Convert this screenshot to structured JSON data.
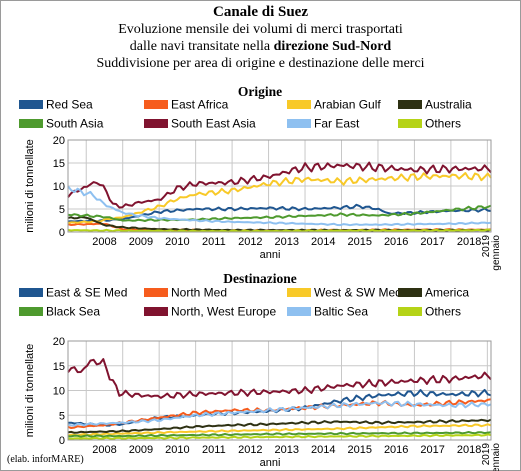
{
  "header": {
    "title": "Canale di Suez",
    "line1": "Evoluzione mensile dei volumi di merci trasportati",
    "line2_prefix": "dalle navi transitate nella ",
    "line2_bold": "direzione Sud-Nord",
    "line3": "Suddivisione per area di origine e destinazione delle merci"
  },
  "credit": "(elab. inforMARE)",
  "chart_data": [
    {
      "type": "line",
      "title": "Origine",
      "xlabel": "anni",
      "ylabel": "milioni di tonnellate",
      "x_ticks": [
        "2008",
        "2009",
        "2010",
        "2011",
        "2012",
        "2013",
        "2014",
        "2015",
        "2016",
        "2017",
        "2018",
        "2019 gennaio"
      ],
      "x_range": [
        2007.5,
        2019.1
      ],
      "ylim": [
        0,
        20
      ],
      "y_ticks": [
        0,
        5,
        10,
        15,
        20
      ],
      "grid": true,
      "legend_position": "top",
      "series": [
        {
          "name": "Red Sea",
          "color": "#1f5690",
          "keyframes": [
            [
              2007.5,
              2.3
            ],
            [
              2008.5,
              2.5
            ],
            [
              2009.0,
              2.8
            ],
            [
              2009.5,
              3.6
            ],
            [
              2010.0,
              4.4
            ],
            [
              2011.0,
              5.0
            ],
            [
              2012.0,
              5.0
            ],
            [
              2013.0,
              5.2
            ],
            [
              2014.0,
              5.0
            ],
            [
              2015.0,
              5.3
            ],
            [
              2015.5,
              5.6
            ],
            [
              2016.0,
              5.0
            ],
            [
              2016.3,
              4.0
            ],
            [
              2017.0,
              4.2
            ],
            [
              2018.0,
              4.6
            ],
            [
              2019.0,
              4.8
            ]
          ]
        },
        {
          "name": "East Africa",
          "color": "#f65c1d",
          "keyframes": [
            [
              2007.5,
              1.6
            ],
            [
              2008.5,
              1.8
            ],
            [
              2009.0,
              0.6
            ],
            [
              2011.0,
              0.4
            ],
            [
              2013.0,
              0.3
            ],
            [
              2015.0,
              0.4
            ],
            [
              2017.0,
              0.5
            ],
            [
              2019.0,
              0.5
            ]
          ]
        },
        {
          "name": "Arabian Gulf",
          "color": "#f8c928",
          "keyframes": [
            [
              2007.5,
              2.0
            ],
            [
              2008.3,
              2.3
            ],
            [
              2008.6,
              2.8
            ],
            [
              2009.0,
              3.2
            ],
            [
              2010.0,
              5.5
            ],
            [
              2010.5,
              7.2
            ],
            [
              2011.0,
              8.2
            ],
            [
              2012.0,
              9.0
            ],
            [
              2013.0,
              10.5
            ],
            [
              2014.0,
              11.5
            ],
            [
              2015.0,
              11.0
            ],
            [
              2016.0,
              11.5
            ],
            [
              2017.0,
              12.0
            ],
            [
              2018.0,
              12.2
            ],
            [
              2019.0,
              12.0
            ]
          ]
        },
        {
          "name": "Australia",
          "color": "#2e3113",
          "keyframes": [
            [
              2007.5,
              3.0
            ],
            [
              2008.0,
              3.2
            ],
            [
              2008.5,
              1.5
            ],
            [
              2009.0,
              1.0
            ],
            [
              2010.0,
              0.6
            ],
            [
              2012.0,
              0.4
            ],
            [
              2014.0,
              0.4
            ],
            [
              2016.0,
              0.4
            ],
            [
              2019.0,
              0.4
            ]
          ]
        },
        {
          "name": "South Asia",
          "color": "#4e9a2e",
          "keyframes": [
            [
              2007.5,
              3.8
            ],
            [
              2008.5,
              3.3
            ],
            [
              2009.0,
              2.5
            ],
            [
              2010.0,
              2.6
            ],
            [
              2011.0,
              2.7
            ],
            [
              2012.0,
              3.0
            ],
            [
              2013.0,
              3.2
            ],
            [
              2014.0,
              3.5
            ],
            [
              2015.0,
              3.8
            ],
            [
              2016.0,
              3.6
            ],
            [
              2017.0,
              4.0
            ],
            [
              2018.0,
              4.8
            ],
            [
              2019.0,
              5.5
            ]
          ]
        },
        {
          "name": "South East Asia",
          "color": "#80132f",
          "keyframes": [
            [
              2007.5,
              8.0
            ],
            [
              2007.9,
              9.5
            ],
            [
              2008.3,
              11.0
            ],
            [
              2008.6,
              8.5
            ],
            [
              2008.7,
              6.0
            ],
            [
              2009.0,
              5.5
            ],
            [
              2009.5,
              6.5
            ],
            [
              2010.0,
              7.0
            ],
            [
              2010.5,
              9.5
            ],
            [
              2011.0,
              10.5
            ],
            [
              2012.0,
              10.8
            ],
            [
              2013.0,
              12.0
            ],
            [
              2013.7,
              13.5
            ],
            [
              2014.0,
              14.0
            ],
            [
              2015.0,
              14.5
            ],
            [
              2016.0,
              14.0
            ],
            [
              2017.0,
              13.5
            ],
            [
              2018.0,
              13.7
            ],
            [
              2019.0,
              13.8
            ]
          ]
        },
        {
          "name": "Far East",
          "color": "#8ec0f0",
          "keyframes": [
            [
              2007.5,
              9.5
            ],
            [
              2008.2,
              8.0
            ],
            [
              2008.5,
              6.0
            ],
            [
              2009.0,
              4.2
            ],
            [
              2009.5,
              3.5
            ],
            [
              2010.0,
              3.0
            ],
            [
              2011.0,
              2.5
            ],
            [
              2012.0,
              2.2
            ],
            [
              2013.0,
              2.0
            ],
            [
              2014.0,
              1.8
            ],
            [
              2015.0,
              1.6
            ],
            [
              2016.0,
              1.6
            ],
            [
              2017.0,
              1.7
            ],
            [
              2018.0,
              1.8
            ],
            [
              2019.0,
              2.0
            ]
          ]
        },
        {
          "name": "Others",
          "color": "#b5d317",
          "keyframes": [
            [
              2007.5,
              0.4
            ],
            [
              2009.0,
              0.3
            ],
            [
              2011.0,
              0.2
            ],
            [
              2013.0,
              0.2
            ],
            [
              2015.0,
              0.3
            ],
            [
              2017.0,
              0.3
            ],
            [
              2019.0,
              0.4
            ]
          ]
        }
      ]
    },
    {
      "type": "line",
      "title": "Destinazione",
      "xlabel": "anni",
      "ylabel": "milioni di tonnellate",
      "x_ticks": [
        "2008",
        "2009",
        "2010",
        "2011",
        "2012",
        "2013",
        "2014",
        "2015",
        "2016",
        "2017",
        "2018",
        "2019 gennaio"
      ],
      "x_range": [
        2007.5,
        2019.1
      ],
      "ylim": [
        0,
        20
      ],
      "y_ticks": [
        0,
        5,
        10,
        15,
        20
      ],
      "grid": true,
      "legend_position": "top",
      "series": [
        {
          "name": "East & SE Med",
          "color": "#1f5690",
          "keyframes": [
            [
              2007.5,
              3.5
            ],
            [
              2008.5,
              3.0
            ],
            [
              2009.0,
              3.2
            ],
            [
              2010.0,
              4.5
            ],
            [
              2011.0,
              5.0
            ],
            [
              2012.0,
              5.5
            ],
            [
              2013.0,
              5.8
            ],
            [
              2014.0,
              6.5
            ],
            [
              2015.0,
              8.0
            ],
            [
              2016.0,
              9.0
            ],
            [
              2017.0,
              9.5
            ],
            [
              2018.0,
              9.2
            ],
            [
              2019.0,
              9.5
            ]
          ]
        },
        {
          "name": "North Med",
          "color": "#f65c1d",
          "keyframes": [
            [
              2007.5,
              2.5
            ],
            [
              2008.5,
              3.0
            ],
            [
              2009.0,
              3.5
            ],
            [
              2010.0,
              4.5
            ],
            [
              2011.0,
              5.5
            ],
            [
              2012.0,
              6.0
            ],
            [
              2013.0,
              6.0
            ],
            [
              2014.0,
              6.5
            ],
            [
              2015.0,
              7.0
            ],
            [
              2016.0,
              7.5
            ],
            [
              2017.0,
              7.0
            ],
            [
              2018.0,
              7.5
            ],
            [
              2019.0,
              8.0
            ]
          ]
        },
        {
          "name": "West & SW Med",
          "color": "#f8c928",
          "keyframes": [
            [
              2007.5,
              1.0
            ],
            [
              2009.0,
              1.3
            ],
            [
              2011.0,
              1.7
            ],
            [
              2013.0,
              2.0
            ],
            [
              2015.0,
              2.3
            ],
            [
              2017.0,
              2.8
            ],
            [
              2019.0,
              3.0
            ]
          ]
        },
        {
          "name": "America",
          "color": "#2e3113",
          "keyframes": [
            [
              2007.5,
              1.5
            ],
            [
              2009.0,
              1.8
            ],
            [
              2010.0,
              2.2
            ],
            [
              2011.0,
              2.7
            ],
            [
              2012.0,
              3.0
            ],
            [
              2013.0,
              3.2
            ],
            [
              2014.0,
              3.5
            ],
            [
              2015.0,
              3.7
            ],
            [
              2016.0,
              3.5
            ],
            [
              2017.0,
              3.6
            ],
            [
              2018.0,
              3.8
            ],
            [
              2019.0,
              4.0
            ]
          ]
        },
        {
          "name": "Black Sea",
          "color": "#4e9a2e",
          "keyframes": [
            [
              2007.5,
              0.8
            ],
            [
              2009.0,
              0.8
            ],
            [
              2011.0,
              1.0
            ],
            [
              2013.0,
              1.2
            ],
            [
              2015.0,
              1.3
            ],
            [
              2017.0,
              1.4
            ],
            [
              2019.0,
              1.5
            ]
          ]
        },
        {
          "name": "North, West Europe",
          "color": "#80132f",
          "keyframes": [
            [
              2007.5,
              14.5
            ],
            [
              2007.9,
              13.8
            ],
            [
              2008.1,
              16.0
            ],
            [
              2008.5,
              15.5
            ],
            [
              2008.7,
              12.0
            ],
            [
              2008.9,
              9.5
            ],
            [
              2009.5,
              9.0
            ],
            [
              2010.0,
              8.8
            ],
            [
              2011.0,
              9.3
            ],
            [
              2012.0,
              9.5
            ],
            [
              2013.0,
              9.7
            ],
            [
              2014.0,
              10.0
            ],
            [
              2015.0,
              11.0
            ],
            [
              2016.0,
              11.5
            ],
            [
              2017.0,
              12.0
            ],
            [
              2018.0,
              12.3
            ],
            [
              2019.0,
              13.0
            ]
          ]
        },
        {
          "name": "Baltic Sea",
          "color": "#8ec0f0",
          "keyframes": [
            [
              2007.5,
              3.0
            ],
            [
              2009.0,
              3.5
            ],
            [
              2010.0,
              4.0
            ],
            [
              2011.0,
              5.0
            ],
            [
              2012.0,
              5.5
            ],
            [
              2013.0,
              6.0
            ],
            [
              2014.0,
              6.5
            ],
            [
              2015.0,
              7.0
            ],
            [
              2016.0,
              7.5
            ],
            [
              2017.0,
              7.2
            ],
            [
              2018.0,
              7.0
            ],
            [
              2019.0,
              7.2
            ]
          ]
        },
        {
          "name": "Others",
          "color": "#b5d317",
          "keyframes": [
            [
              2007.5,
              0.3
            ],
            [
              2010.0,
              0.4
            ],
            [
              2013.0,
              0.6
            ],
            [
              2016.0,
              0.8
            ],
            [
              2019.0,
              1.0
            ]
          ]
        }
      ]
    }
  ]
}
